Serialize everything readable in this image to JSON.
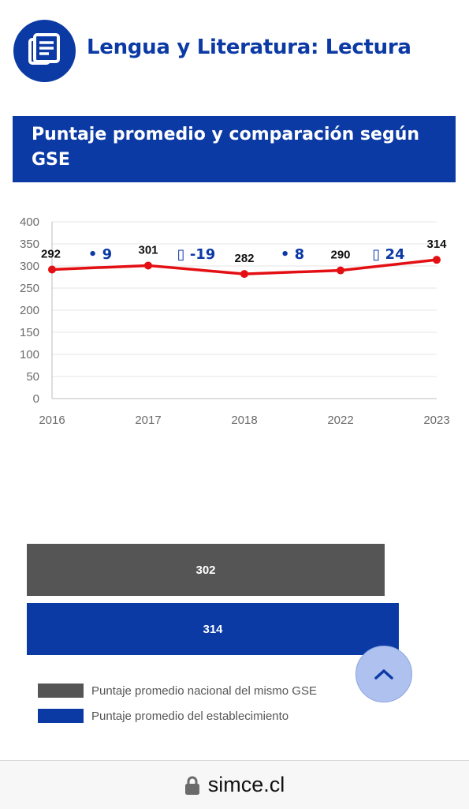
{
  "header": {
    "subject_title": "Lengua y Literatura: Lectura",
    "icon": "document-lines-icon"
  },
  "banner": {
    "title": "Puntaje promedio y comparación según GSE"
  },
  "colors": {
    "brand_blue": "#0c3aa5",
    "line_red": "#e30f13",
    "national_gray": "#555555",
    "grid": "#e4e4e4"
  },
  "chart_data": [
    {
      "type": "line",
      "categories": [
        "2016",
        "2017",
        "2018",
        "2022",
        "2023"
      ],
      "values": [
        292,
        301,
        282,
        290,
        314
      ],
      "ylim": [
        0,
        400
      ],
      "yticks": [
        0,
        50,
        100,
        150,
        200,
        250,
        300,
        350,
        400
      ],
      "grid": true,
      "comparisons": [
        {
          "between": [
            "2016",
            "2017"
          ],
          "marker": "•",
          "value": "9"
        },
        {
          "between": [
            "2017",
            "2018"
          ],
          "marker": "▯",
          "value": "-19"
        },
        {
          "between": [
            "2018",
            "2022"
          ],
          "marker": "•",
          "value": "8"
        },
        {
          "between": [
            "2022",
            "2023"
          ],
          "marker": "▯",
          "value": "24"
        }
      ]
    },
    {
      "type": "bar",
      "orientation": "horizontal",
      "series": [
        {
          "name": "Puntaje promedio nacional del mismo GSE",
          "value": 302,
          "color": "#555555"
        },
        {
          "name": "Puntaje promedio del establecimiento",
          "value": 314,
          "color": "#0c3aa5"
        }
      ]
    }
  ],
  "scroll_top": {
    "icon": "chevron-up-icon"
  },
  "address_bar": {
    "url": "simce.cl",
    "icon": "lock-icon"
  }
}
